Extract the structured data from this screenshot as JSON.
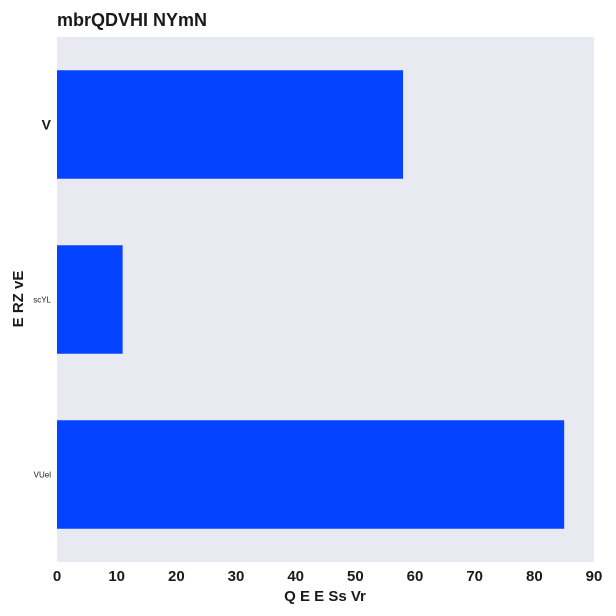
{
  "chart_data": {
    "type": "bar",
    "orientation": "horizontal",
    "title": "mbrQDVHI NYmN",
    "xlabel": "Q  E E Ss Vr",
    "ylabel": "E RZ  vE",
    "categories": [
      "V",
      "scYL",
      "VUel"
    ],
    "values": [
      58,
      11,
      85
    ],
    "xlim": [
      0,
      90
    ],
    "x_ticks": [
      0,
      10,
      20,
      30,
      40,
      50,
      60,
      70,
      80,
      90
    ],
    "grid": false,
    "legend": "none",
    "colors": {
      "bar": "#0443ff",
      "plot_background": "#e9e9f2"
    }
  }
}
